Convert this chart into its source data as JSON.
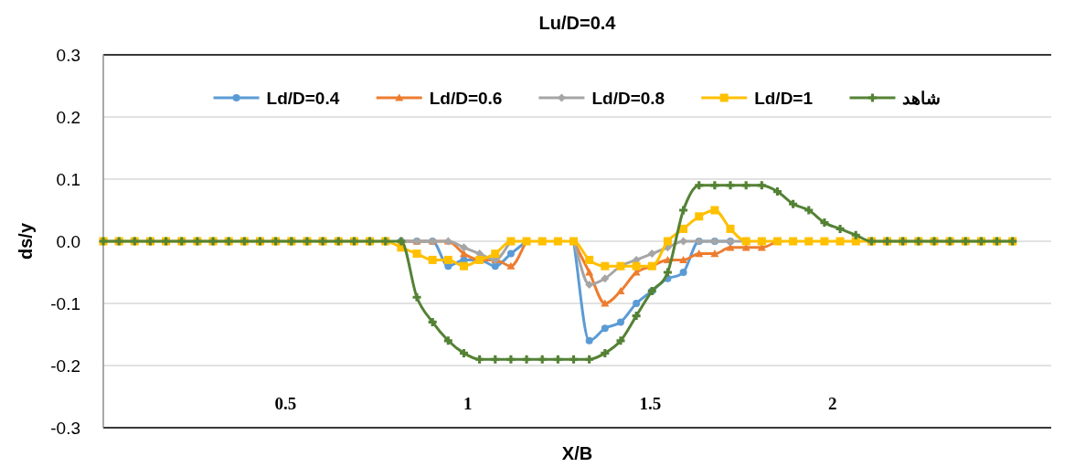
{
  "chart_data": {
    "type": "line",
    "title": "Lu/D=0.4",
    "xlabel": "X/B",
    "ylabel": "ds/y",
    "x": [
      0,
      0.043,
      0.086,
      0.129,
      0.172,
      0.215,
      0.258,
      0.301,
      0.344,
      0.387,
      0.43,
      0.473,
      0.516,
      0.559,
      0.602,
      0.645,
      0.688,
      0.731,
      0.774,
      0.817,
      0.86,
      0.903,
      0.946,
      0.989,
      1.032,
      1.075,
      1.118,
      1.161,
      1.204,
      1.247,
      1.29,
      1.333,
      1.376,
      1.419,
      1.462,
      1.505,
      1.548,
      1.591,
      1.634,
      1.677,
      1.72,
      1.763,
      1.806,
      1.849,
      1.892,
      1.935,
      1.978,
      2.021,
      2.064,
      2.107,
      2.15,
      2.193,
      2.236,
      2.279,
      2.322,
      2.365,
      2.408,
      2.451,
      2.494
    ],
    "xlim": [
      0,
      2.6
    ],
    "xticks": [
      0.5,
      1,
      1.5,
      2
    ],
    "ylim": [
      -0.3,
      0.3
    ],
    "yticks": [
      -0.3,
      -0.2,
      -0.1,
      {
        "value": 0,
        "label": "0.0"
      },
      0.1,
      0.2,
      0.3
    ],
    "grid": "y",
    "legend": "top",
    "line_style": "solid",
    "series": [
      {
        "name": "Ld/D=0.4",
        "color": "#5b9bd5",
        "marker": "circle",
        "values": [
          null,
          null,
          null,
          null,
          null,
          null,
          null,
          null,
          null,
          null,
          null,
          null,
          null,
          null,
          null,
          null,
          null,
          null,
          null,
          0,
          0,
          0,
          -0.04,
          -0.03,
          -0.03,
          -0.04,
          -0.02,
          0,
          null,
          null,
          0,
          -0.16,
          -0.14,
          -0.13,
          -0.1,
          -0.08,
          -0.06,
          -0.05,
          0,
          0,
          0,
          null,
          null,
          null,
          null,
          null,
          null,
          null,
          null,
          null,
          null,
          null,
          null,
          null,
          null,
          null,
          null,
          null,
          null
        ]
      },
      {
        "name": "Ld/D=0.6",
        "color": "#ed7d31",
        "marker": "triangle",
        "values": [
          null,
          null,
          null,
          null,
          null,
          null,
          null,
          null,
          null,
          null,
          null,
          null,
          null,
          null,
          null,
          null,
          null,
          null,
          null,
          0,
          0,
          0,
          0,
          -0.02,
          -0.03,
          -0.03,
          -0.04,
          0,
          null,
          null,
          0,
          -0.05,
          -0.1,
          -0.08,
          -0.05,
          -0.04,
          -0.03,
          -0.03,
          -0.02,
          -0.02,
          -0.01,
          -0.01,
          -0.01,
          0,
          null,
          null,
          null,
          null,
          null,
          null,
          null,
          null,
          null,
          null,
          null,
          null,
          null,
          null,
          null
        ]
      },
      {
        "name": "Ld/D=0.8",
        "color": "#a5a5a5",
        "marker": "diamond",
        "values": [
          null,
          null,
          null,
          null,
          null,
          null,
          null,
          null,
          null,
          null,
          null,
          null,
          null,
          null,
          null,
          null,
          null,
          null,
          null,
          0,
          0,
          0,
          0,
          -0.01,
          -0.02,
          -0.03,
          0,
          null,
          null,
          null,
          0,
          -0.07,
          -0.06,
          -0.04,
          -0.03,
          -0.02,
          -0.01,
          0,
          0,
          0,
          0,
          0,
          null,
          null,
          null,
          null,
          null,
          null,
          null,
          null,
          null,
          null,
          null,
          null,
          null,
          null,
          null,
          null,
          null
        ]
      },
      {
        "name": "Ld/D=1",
        "color": "#ffc000",
        "marker": "square",
        "values": [
          0,
          0,
          0,
          0,
          0,
          0,
          0,
          0,
          0,
          0,
          0,
          0,
          0,
          0,
          0,
          0,
          0,
          0,
          0,
          -0.01,
          -0.02,
          -0.03,
          -0.03,
          -0.04,
          -0.03,
          -0.02,
          0,
          0,
          0,
          0,
          0,
          -0.03,
          -0.04,
          -0.04,
          -0.04,
          -0.04,
          0,
          0.02,
          0.04,
          0.05,
          0.02,
          0,
          0,
          0,
          0,
          0,
          0,
          0,
          0,
          0,
          0,
          0,
          0,
          0,
          0,
          0,
          0,
          0,
          0
        ]
      },
      {
        "name": "شاهد",
        "color": "#548235",
        "marker": "cross",
        "values": [
          0,
          0,
          0,
          0,
          0,
          0,
          0,
          0,
          0,
          0,
          0,
          0,
          0,
          0,
          0,
          0,
          0,
          0,
          0,
          0,
          -0.09,
          -0.13,
          -0.16,
          -0.18,
          -0.19,
          -0.19,
          -0.19,
          -0.19,
          -0.19,
          -0.19,
          -0.19,
          -0.19,
          -0.18,
          -0.16,
          -0.12,
          -0.08,
          -0.05,
          0.05,
          0.09,
          0.09,
          0.09,
          0.09,
          0.09,
          0.08,
          0.06,
          0.05,
          0.03,
          0.02,
          0.01,
          0,
          0,
          0,
          0,
          0,
          0,
          0,
          0,
          0,
          0
        ]
      }
    ]
  }
}
